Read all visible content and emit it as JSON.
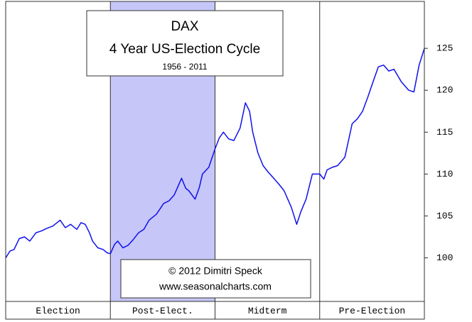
{
  "chart_data": {
    "type": "line",
    "title": "DAX",
    "subtitle": "4 Year US-Election Cycle",
    "period": "1956 - 2011",
    "credit": "© 2012 Dimitri Speck",
    "website": "www.seasonalcharts.com",
    "categories": [
      "Election",
      "Post-Elect.",
      "Midterm",
      "Pre-Election"
    ],
    "highlight_index": 1,
    "highlight_color": "#c6c6f8",
    "xlim": [
      0,
      4
    ],
    "ylim": [
      94.8,
      130.6
    ],
    "yticks": [
      100,
      105,
      110,
      115,
      120,
      125
    ],
    "x": [
      0,
      0.04,
      0.08,
      0.13,
      0.18,
      0.23,
      0.29,
      0.34,
      0.39,
      0.45,
      0.52,
      0.57,
      0.62,
      0.68,
      0.72,
      0.76,
      0.8,
      0.83,
      0.88,
      0.93,
      0.97,
      1.0,
      1.04,
      1.07,
      1.12,
      1.17,
      1.22,
      1.27,
      1.32,
      1.37,
      1.44,
      1.51,
      1.56,
      1.61,
      1.68,
      1.72,
      1.75,
      1.81,
      1.85,
      1.88,
      1.94,
      2.0,
      2.04,
      2.08,
      2.13,
      2.18,
      2.24,
      2.29,
      2.33,
      2.36,
      2.41,
      2.46,
      2.51,
      2.56,
      2.61,
      2.66,
      2.73,
      2.78,
      2.82,
      2.87,
      2.93,
      3.0,
      3.04,
      3.07,
      3.12,
      3.17,
      3.24,
      3.31,
      3.36,
      3.41,
      3.46,
      3.51,
      3.56,
      3.61,
      3.66,
      3.71,
      3.78,
      3.85,
      3.9,
      3.95,
      4.0
    ],
    "series": [
      {
        "name": "DAX",
        "color": "#1010ee",
        "values": [
          100,
          100.8,
          101,
          102.3,
          102.5,
          102,
          103,
          103.2,
          103.5,
          103.8,
          104.5,
          103.6,
          104,
          103.4,
          104.2,
          104,
          103,
          102,
          101.2,
          101,
          100.6,
          100.5,
          101.6,
          102,
          101.2,
          101.5,
          102.2,
          103,
          103.4,
          104.5,
          105.2,
          106.5,
          106.8,
          107.5,
          109.5,
          108.3,
          108,
          107,
          108.4,
          110,
          110.8,
          113,
          114.3,
          115,
          114.2,
          114,
          115.5,
          118.5,
          117.5,
          115,
          112.5,
          111,
          110.2,
          109.5,
          108.8,
          108,
          106,
          104,
          105.5,
          107,
          110,
          110,
          109.4,
          110.5,
          110.8,
          111,
          112,
          116,
          116.6,
          117.5,
          119.2,
          121,
          122.8,
          123,
          122.3,
          122.5,
          121,
          120,
          119.8,
          123,
          125
        ]
      }
    ]
  }
}
